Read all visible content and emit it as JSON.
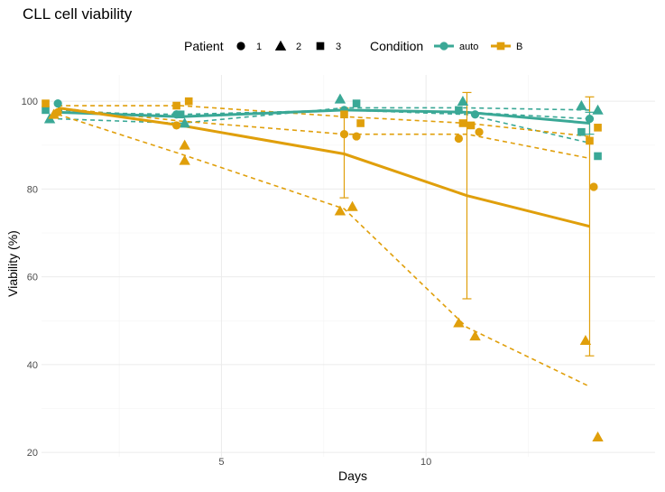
{
  "chart_data": {
    "type": "line",
    "title": "CLL cell viability",
    "xlabel": "Days",
    "ylabel": "Viability (%)",
    "xlim": [
      0.6,
      15.6
    ],
    "ylim": [
      19,
      106
    ],
    "x_ticks": [
      5,
      10
    ],
    "y_ticks": [
      20,
      40,
      60,
      80,
      100
    ],
    "grid": true,
    "legend_position": "top",
    "legend": {
      "patient_title": "Patient",
      "patient_entries": [
        {
          "label": "1",
          "shape": "circle"
        },
        {
          "label": "2",
          "shape": "triangle"
        },
        {
          "label": "3",
          "shape": "square"
        }
      ],
      "condition_title": "Condition",
      "condition_entries": [
        {
          "label": "auto",
          "color": "#3AA896"
        },
        {
          "label": "B",
          "color": "#E09F0B"
        }
      ]
    },
    "series": [
      {
        "condition": "auto",
        "patient": "1",
        "x": [
          1,
          4,
          8,
          11,
          14
        ],
        "y": [
          98,
          96.5,
          98,
          97.5,
          96
        ]
      },
      {
        "condition": "auto",
        "patient": "2",
        "x": [
          1,
          4,
          8,
          11,
          14
        ],
        "y": [
          96,
          95,
          98.5,
          98.5,
          98
        ]
      },
      {
        "condition": "auto",
        "patient": "3",
        "x": [
          1,
          4,
          8,
          11,
          14
        ],
        "y": [
          97.5,
          97,
          98,
          97,
          90.5
        ]
      },
      {
        "condition": "B",
        "patient": "1",
        "x": [
          1,
          4,
          8,
          11,
          14
        ],
        "y": [
          98.5,
          95.5,
          92.5,
          92.5,
          87
        ]
      },
      {
        "condition": "B",
        "patient": "2",
        "x": [
          1,
          4,
          8,
          11,
          14
        ],
        "y": [
          97,
          88,
          75.5,
          48.5,
          35
        ]
      },
      {
        "condition": "B",
        "patient": "3",
        "x": [
          1,
          4,
          8,
          11,
          14
        ],
        "y": [
          99,
          99,
          96.5,
          95,
          92
        ]
      }
    ],
    "mean_lines": [
      {
        "condition": "auto",
        "x": [
          1,
          4,
          8,
          11,
          14
        ],
        "y": [
          97.5,
          96.5,
          98,
          97.5,
          95
        ]
      },
      {
        "condition": "B",
        "x": [
          1,
          4,
          8,
          11,
          14
        ],
        "y": [
          98.5,
          94.5,
          88,
          78.5,
          71.5
        ]
      }
    ],
    "error_bars": [
      {
        "condition": "B",
        "x": 8,
        "ymin": 78,
        "ymax": 98.5
      },
      {
        "condition": "B",
        "x": 11,
        "ymin": 55,
        "ymax": 102
      },
      {
        "condition": "B",
        "x": 14,
        "ymin": 42,
        "ymax": 101
      },
      {
        "condition": "auto",
        "x": 14,
        "ymin": 92.5,
        "ymax": 97.5
      }
    ],
    "points": [
      {
        "condition": "auto",
        "shape": "circle",
        "x": 1,
        "y": 99.5
      },
      {
        "condition": "auto",
        "shape": "circle",
        "x": 3.9,
        "y": 97
      },
      {
        "condition": "auto",
        "shape": "circle",
        "x": 8,
        "y": 98
      },
      {
        "condition": "auto",
        "shape": "circle",
        "x": 11.2,
        "y": 97
      },
      {
        "condition": "auto",
        "shape": "circle",
        "x": 14,
        "y": 96
      },
      {
        "condition": "auto",
        "shape": "triangle",
        "x": 0.8,
        "y": 96
      },
      {
        "condition": "auto",
        "shape": "triangle",
        "x": 4.1,
        "y": 95
      },
      {
        "condition": "auto",
        "shape": "triangle",
        "x": 7.9,
        "y": 100.5
      },
      {
        "condition": "auto",
        "shape": "triangle",
        "x": 10.9,
        "y": 100
      },
      {
        "condition": "auto",
        "shape": "triangle",
        "x": 13.8,
        "y": 99
      },
      {
        "condition": "auto",
        "shape": "triangle",
        "x": 14.2,
        "y": 98
      },
      {
        "condition": "auto",
        "shape": "square",
        "x": 0.7,
        "y": 98
      },
      {
        "condition": "auto",
        "shape": "square",
        "x": 4,
        "y": 97
      },
      {
        "condition": "auto",
        "shape": "square",
        "x": 8.3,
        "y": 99.5
      },
      {
        "condition": "auto",
        "shape": "square",
        "x": 10.8,
        "y": 98
      },
      {
        "condition": "auto",
        "shape": "square",
        "x": 13.8,
        "y": 93
      },
      {
        "condition": "auto",
        "shape": "square",
        "x": 14.2,
        "y": 87.5
      },
      {
        "condition": "B",
        "shape": "circle",
        "x": 1,
        "y": 97.5
      },
      {
        "condition": "B",
        "shape": "circle",
        "x": 3.9,
        "y": 94.5
      },
      {
        "condition": "B",
        "shape": "circle",
        "x": 8,
        "y": 92.5
      },
      {
        "condition": "B",
        "shape": "circle",
        "x": 8.3,
        "y": 92
      },
      {
        "condition": "B",
        "shape": "circle",
        "x": 10.8,
        "y": 91.5
      },
      {
        "condition": "B",
        "shape": "circle",
        "x": 11.3,
        "y": 93
      },
      {
        "condition": "B",
        "shape": "circle",
        "x": 14.1,
        "y": 80.5
      },
      {
        "condition": "B",
        "shape": "triangle",
        "x": 0.9,
        "y": 97
      },
      {
        "condition": "B",
        "shape": "triangle",
        "x": 4.1,
        "y": 90
      },
      {
        "condition": "B",
        "shape": "triangle",
        "x": 4.1,
        "y": 86.5
      },
      {
        "condition": "B",
        "shape": "triangle",
        "x": 7.9,
        "y": 75
      },
      {
        "condition": "B",
        "shape": "triangle",
        "x": 8.2,
        "y": 76
      },
      {
        "condition": "B",
        "shape": "triangle",
        "x": 10.8,
        "y": 49.5
      },
      {
        "condition": "B",
        "shape": "triangle",
        "x": 11.2,
        "y": 46.5
      },
      {
        "condition": "B",
        "shape": "triangle",
        "x": 13.9,
        "y": 45.5
      },
      {
        "condition": "B",
        "shape": "triangle",
        "x": 14.2,
        "y": 23.5
      },
      {
        "condition": "B",
        "shape": "square",
        "x": 0.7,
        "y": 99.5
      },
      {
        "condition": "B",
        "shape": "square",
        "x": 3.9,
        "y": 99
      },
      {
        "condition": "B",
        "shape": "square",
        "x": 4.2,
        "y": 100
      },
      {
        "condition": "B",
        "shape": "square",
        "x": 8,
        "y": 97
      },
      {
        "condition": "B",
        "shape": "square",
        "x": 8.4,
        "y": 95
      },
      {
        "condition": "B",
        "shape": "square",
        "x": 10.9,
        "y": 95
      },
      {
        "condition": "B",
        "shape": "square",
        "x": 11.1,
        "y": 94.5
      },
      {
        "condition": "B",
        "shape": "square",
        "x": 14,
        "y": 91
      },
      {
        "condition": "B",
        "shape": "square",
        "x": 14.2,
        "y": 94
      }
    ]
  }
}
